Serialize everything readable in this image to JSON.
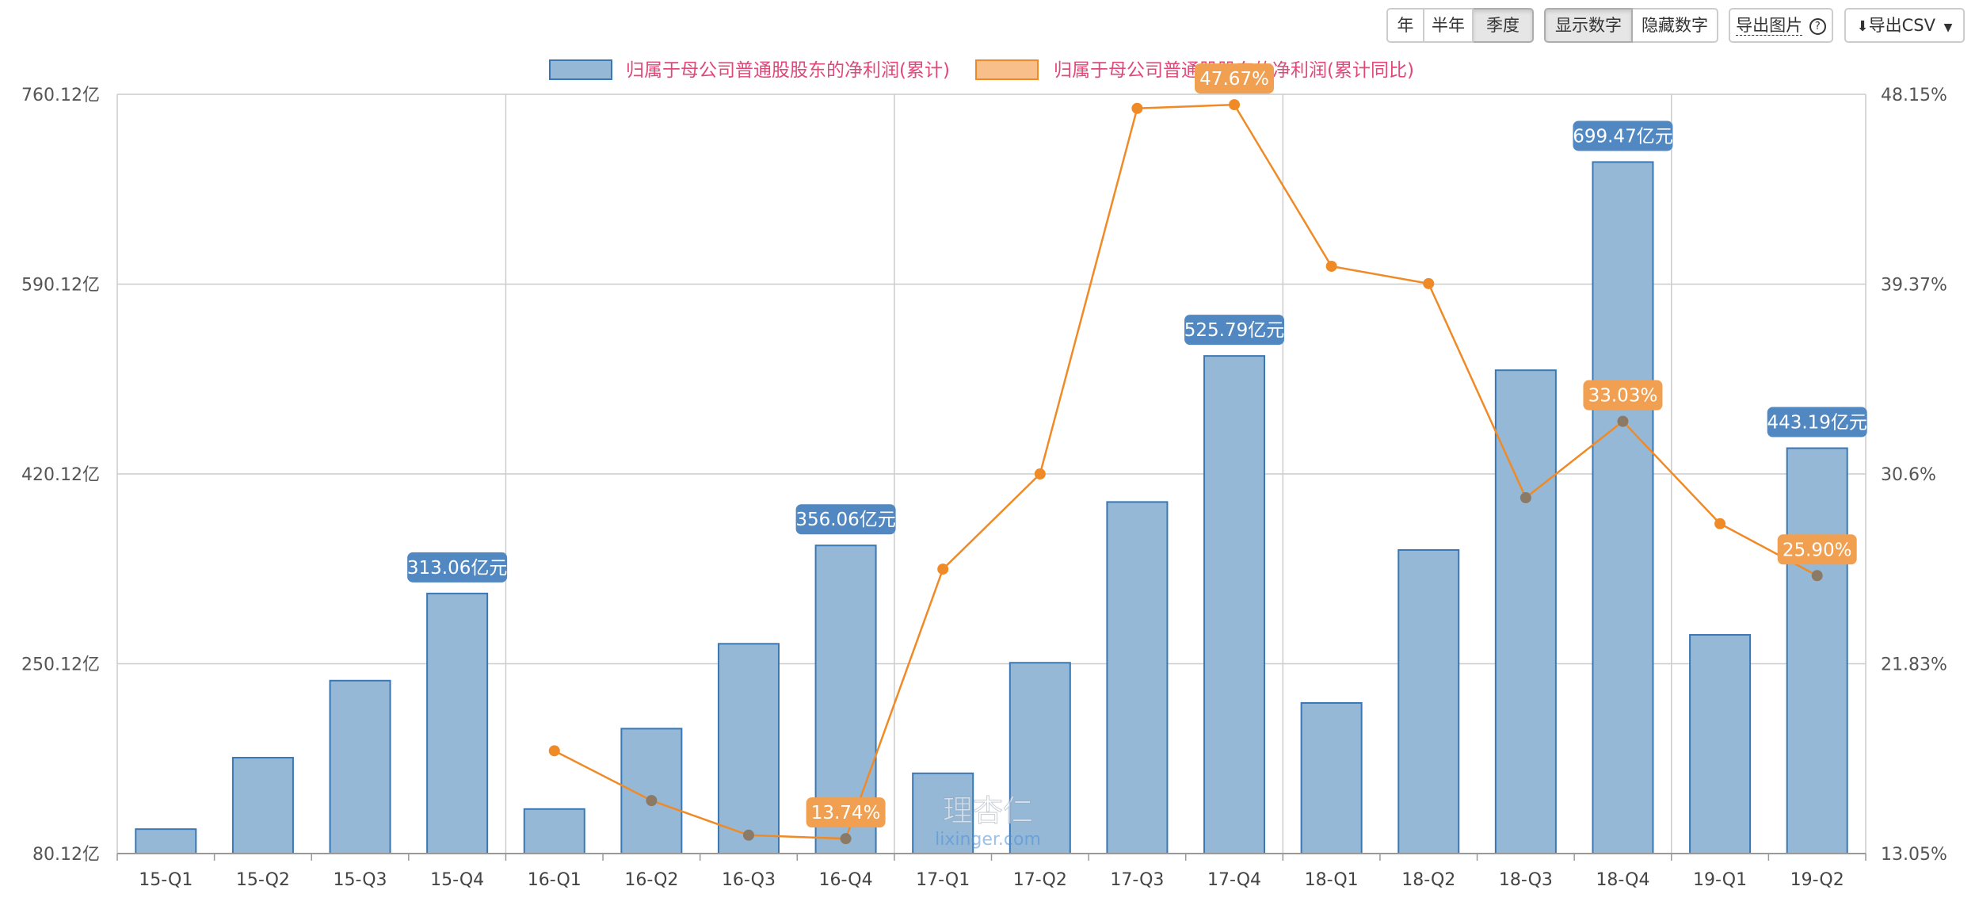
{
  "toolbar": {
    "period_buttons": [
      "年",
      "半年",
      "季度"
    ],
    "active_period": "季度",
    "show_numbers_label": "显示数字",
    "hide_numbers_label": "隐藏数字",
    "export_image_label": "导出图片",
    "export_csv_label": "导出CSV"
  },
  "colors": {
    "bar_fill": "#96b8d7",
    "bar_stroke": "#3a78b5",
    "bar_label_bg": "#5288c2",
    "line": "#f08a26",
    "line_label_bg": "#f0a050",
    "legend_text": "#e0487a",
    "grid": "#cccccc"
  },
  "watermark": {
    "text": "理杏仁",
    "subtext": "lixinger.com"
  },
  "chart_data": {
    "type": "bar",
    "categories": [
      "15-Q1",
      "15-Q2",
      "15-Q3",
      "15-Q4",
      "16-Q1",
      "16-Q2",
      "16-Q3",
      "16-Q4",
      "17-Q1",
      "17-Q2",
      "17-Q3",
      "17-Q4",
      "18-Q1",
      "18-Q2",
      "18-Q3",
      "18-Q4",
      "19-Q1",
      "19-Q2"
    ],
    "series": [
      {
        "name": "归属于母公司普通股股东的净利润(累计)",
        "type": "bar",
        "axis": "left",
        "unit": "亿元",
        "values": [
          102,
          166,
          235,
          313.06,
          120,
          192,
          268,
          356.06,
          152,
          251,
          395,
          525.79,
          215,
          352,
          513,
          699.47,
          276,
          443.19
        ],
        "labels": [
          "",
          "",
          "",
          "313.06亿元",
          "",
          "",
          "",
          "356.06亿元",
          "",
          "",
          "",
          "525.79亿元",
          "",
          "",
          "",
          "699.47亿元",
          "",
          "443.19亿元"
        ]
      },
      {
        "name": "归属于母公司普通股股东的净利润(累计同比)",
        "type": "line",
        "axis": "right",
        "unit": "%",
        "values": [
          null,
          null,
          null,
          null,
          17.8,
          15.5,
          13.9,
          13.74,
          26.2,
          30.6,
          47.5,
          47.67,
          40.2,
          39.4,
          29.5,
          33.03,
          28.3,
          25.9
        ],
        "labels": [
          "",
          "",
          "",
          "",
          "",
          "",
          "",
          "13.74%",
          "",
          "",
          "",
          "47.67%",
          "",
          "",
          "",
          "33.03%",
          "",
          "25.90%"
        ]
      }
    ],
    "y_left": {
      "min": 80.12,
      "max": 760.12,
      "ticks": [
        "80.12亿",
        "250.12亿",
        "420.12亿",
        "590.12亿",
        "760.12亿"
      ]
    },
    "y_right": {
      "min": 13.05,
      "max": 48.15,
      "ticks": [
        "13.05%",
        "21.83%",
        "30.6%",
        "39.37%",
        "48.15%"
      ]
    },
    "legend": [
      {
        "name": "归属于母公司普通股股东的净利润(累计)",
        "type": "bar"
      },
      {
        "name": "归属于母公司普通股股东的净利润(累计同比)",
        "type": "line"
      }
    ],
    "legend_position": "top-center",
    "grid": true
  }
}
